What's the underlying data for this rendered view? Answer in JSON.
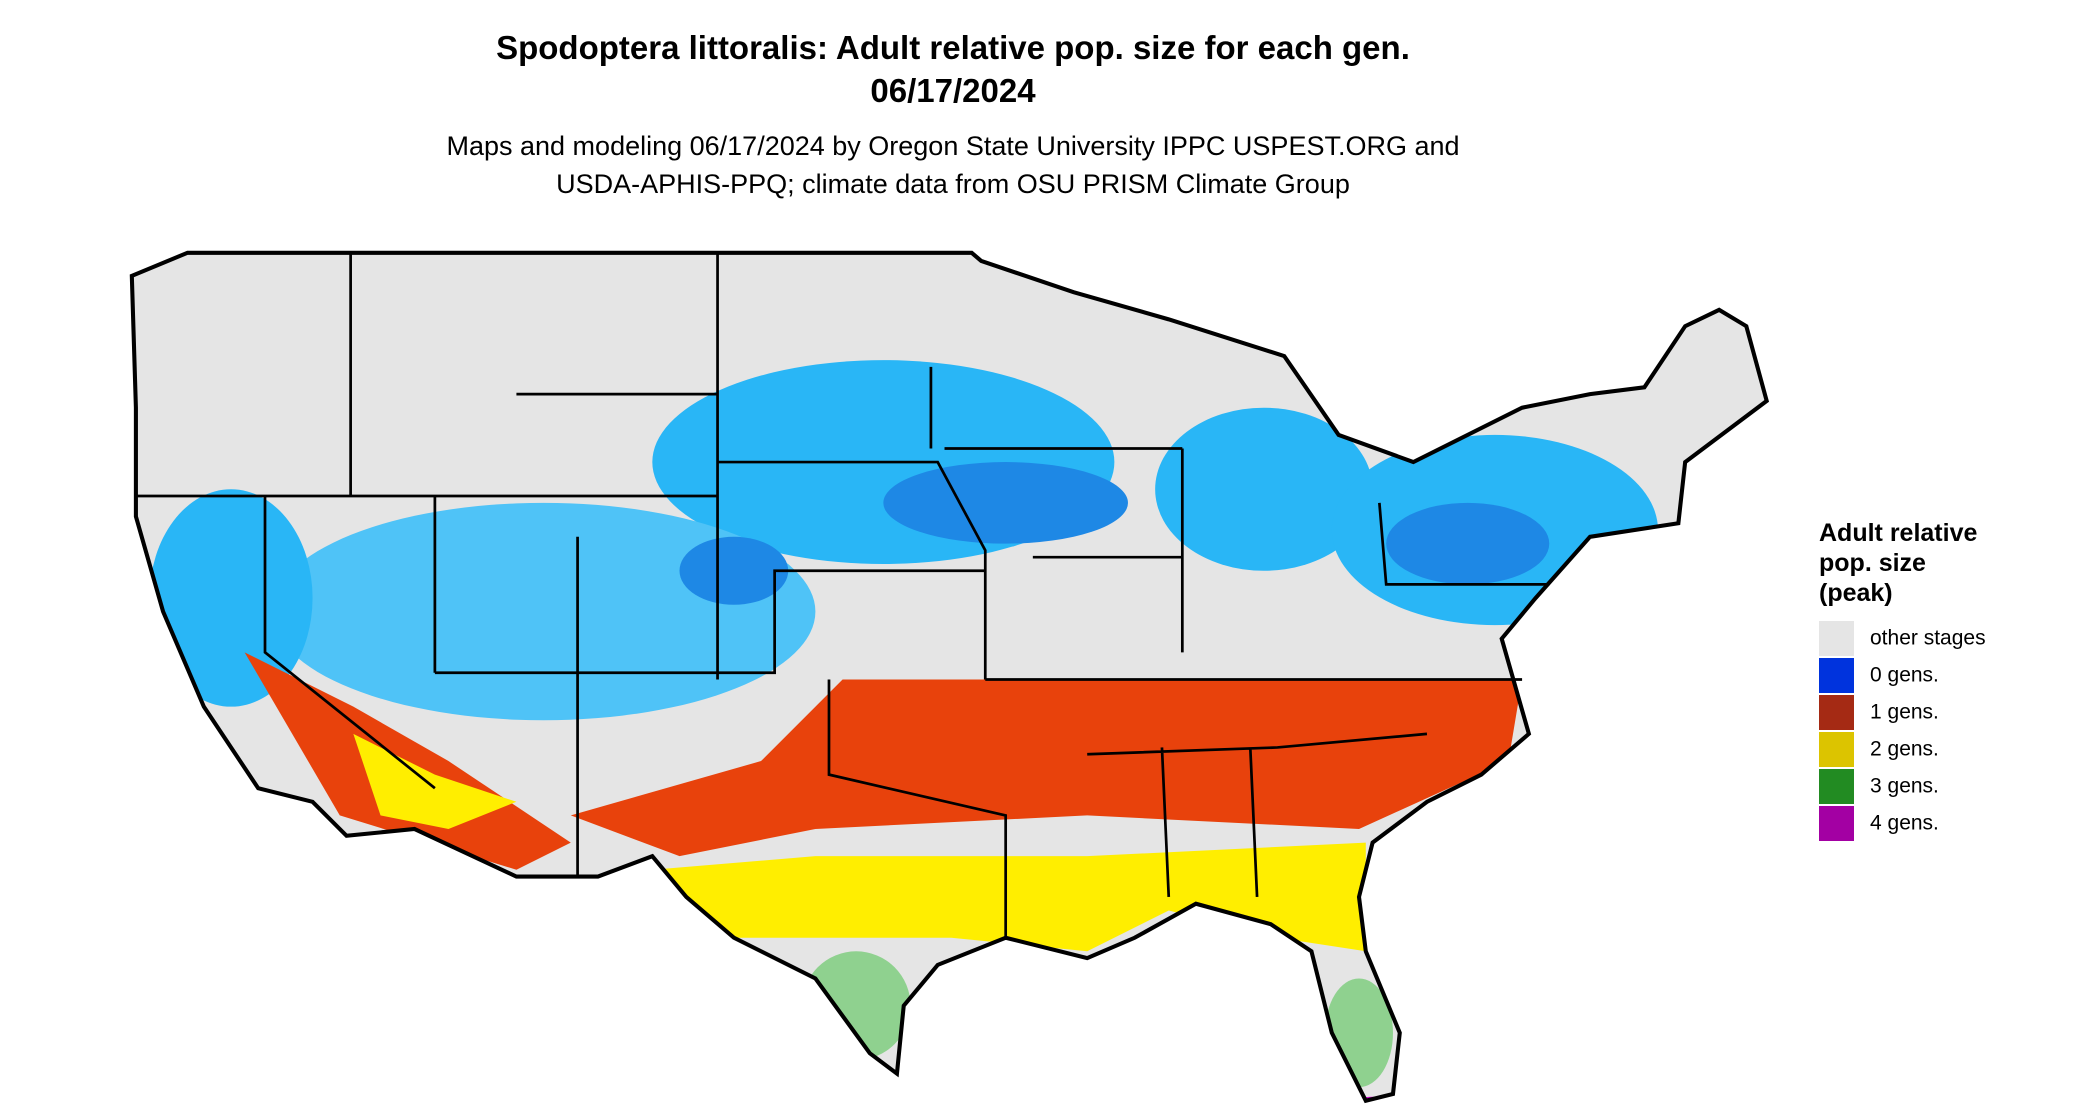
{
  "header": {
    "title": "Spodoptera littoralis: Adult relative pop. size for each gen.",
    "date": "06/17/2024",
    "subtitle": [
      "Maps and modeling 06/17/2024 by Oregon State University IPPC USPEST.ORG and",
      "USDA-APHIS-PPQ; climate data from OSU PRISM Climate Group"
    ]
  },
  "legend": {
    "title": [
      "Adult relative",
      "pop. size",
      "(peak)"
    ],
    "items": [
      {
        "label": "other stages",
        "color": "#e5e5e5"
      },
      {
        "label": "0 gens.",
        "color": "#0033dd"
      },
      {
        "label": "1 gens.",
        "color": "#a52a14"
      },
      {
        "label": "2 gens.",
        "color": "#dcc400"
      },
      {
        "label": "3 gens.",
        "color": "#228b22"
      },
      {
        "label": "4 gens.",
        "color": "#a300a3"
      }
    ]
  }
}
